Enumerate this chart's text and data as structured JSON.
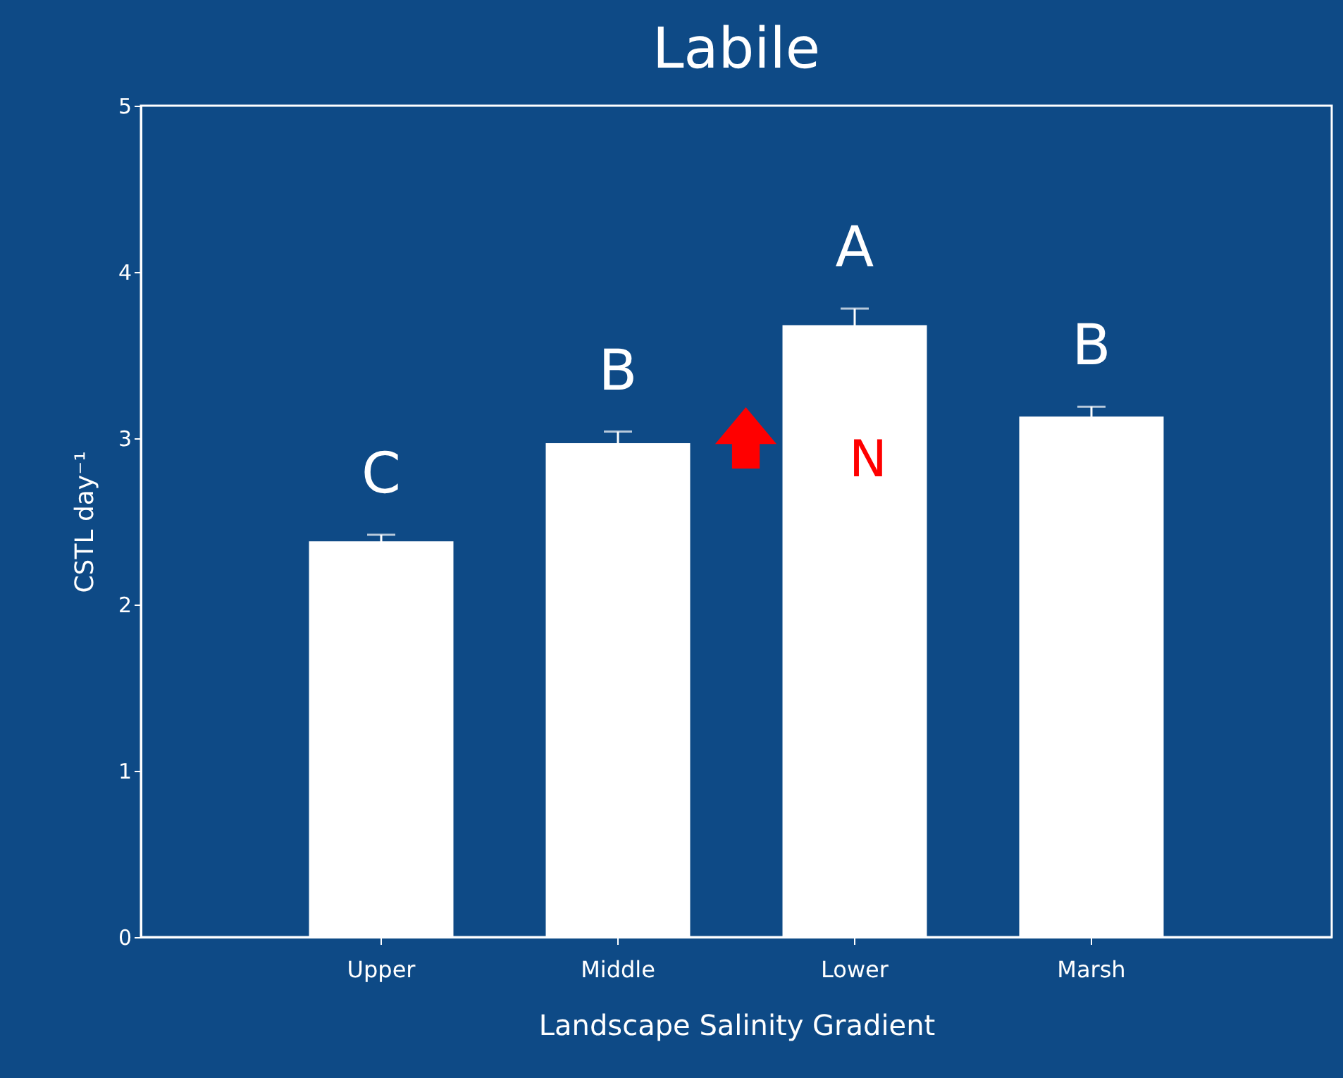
{
  "chart_data": {
    "type": "bar",
    "title": "Labile",
    "xlabel": "Landscape Salinity Gradient",
    "ylabel": "CSTL day⁻¹",
    "categories": [
      "Upper",
      "Middle",
      "Lower",
      "Marsh"
    ],
    "values": [
      2.38,
      2.97,
      3.68,
      3.13
    ],
    "errors": [
      0.04,
      0.07,
      0.1,
      0.06
    ],
    "color": "#ffffff",
    "ylim": [
      0,
      5
    ],
    "yticks": [
      0,
      1,
      2,
      3,
      4,
      5
    ],
    "grid": false,
    "annotations": [
      "C",
      "B",
      "A",
      "B",
      "N"
    ]
  }
}
